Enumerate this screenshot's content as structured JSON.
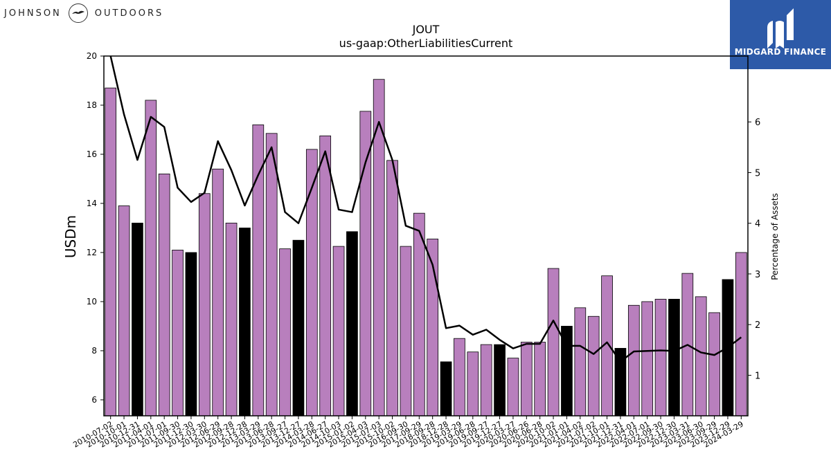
{
  "brand": {
    "left": "JOHNSON",
    "right": "OUTDOORS"
  },
  "logo": {
    "text": "MIDGARD FINANCE"
  },
  "chart_data": {
    "type": "bar",
    "title": "JOUT",
    "subtitle": "us-gaap:OtherLiabilitiesCurrent",
    "ylabel": "USDm",
    "y2label": "Percentage of Assets",
    "ylim": [
      5.35,
      20
    ],
    "y2lim": [
      0.2,
      7.3
    ],
    "yticks": [
      6,
      8,
      10,
      12,
      14,
      16,
      18,
      20
    ],
    "y2ticks": [
      1,
      2,
      3,
      4,
      5,
      6
    ],
    "categories": [
      "2010-07-02",
      "2010-10-01",
      "2010-12-31",
      "2011-04-01",
      "2011-07-01",
      "2011-09-30",
      "2011-12-30",
      "2012-03-30",
      "2012-06-29",
      "2012-09-28",
      "2012-12-28",
      "2013-03-29",
      "2013-06-28",
      "2013-09-27",
      "2013-12-27",
      "2014-03-28",
      "2014-06-27",
      "2014-10-03",
      "2015-01-02",
      "2015-04-03",
      "2015-07-03",
      "2015-10-02",
      "2016-09-30",
      "2017-09-29",
      "2018-09-28",
      "2018-12-28",
      "2019-03-29",
      "2019-06-28",
      "2019-09-27",
      "2019-12-27",
      "2020-03-27",
      "2020-06-26",
      "2020-06-28",
      "2020-10-02",
      "2021-01-01",
      "2021-04-02",
      "2021-07-02",
      "2021-10-01",
      "2021-12-31",
      "2022-04-01",
      "2022-07-01",
      "2022-09-30",
      "2022-12-30",
      "2023-03-31",
      "2023-06-30",
      "2023-09-29",
      "2023-12-29",
      "2024-03-29"
    ],
    "values": [
      18.7,
      13.9,
      13.2,
      18.2,
      15.2,
      12.1,
      12.0,
      14.4,
      15.4,
      13.2,
      13.0,
      17.2,
      16.85,
      12.15,
      12.5,
      16.2,
      16.75,
      12.25,
      12.85,
      17.75,
      19.05,
      15.75,
      12.25,
      13.6,
      12.55,
      7.55,
      8.5,
      7.95,
      8.25,
      8.25,
      7.7,
      8.35,
      8.35,
      11.35,
      9.0,
      9.75,
      9.4,
      11.05,
      8.1,
      9.85,
      10.0,
      10.1,
      10.1,
      11.15,
      10.2,
      9.55,
      10.9,
      12.0
    ],
    "highlight": [
      false,
      false,
      true,
      false,
      false,
      false,
      true,
      false,
      false,
      false,
      true,
      false,
      false,
      false,
      true,
      false,
      false,
      false,
      true,
      false,
      false,
      false,
      false,
      false,
      false,
      true,
      false,
      false,
      false,
      true,
      false,
      false,
      false,
      false,
      true,
      false,
      false,
      false,
      true,
      false,
      false,
      false,
      true,
      false,
      false,
      false,
      true,
      false
    ],
    "line_series": {
      "name": "Percentage of Assets",
      "values": [
        7.3,
        6.15,
        5.25,
        6.1,
        5.9,
        4.7,
        4.42,
        4.6,
        5.62,
        5.05,
        4.35,
        4.95,
        5.5,
        4.22,
        4.0,
        4.7,
        5.42,
        4.27,
        4.22,
        5.2,
        6.0,
        5.25,
        3.95,
        3.85,
        3.18,
        1.93,
        1.98,
        1.8,
        1.9,
        1.7,
        1.53,
        1.62,
        1.62,
        2.08,
        1.58,
        1.58,
        1.42,
        1.65,
        1.27,
        1.47,
        1.48,
        1.49,
        1.48,
        1.6,
        1.45,
        1.4,
        1.55,
        1.75
      ]
    },
    "colors": {
      "bar": "#b87fbd",
      "highlight_bar": "#000000",
      "line": "#000000"
    }
  }
}
